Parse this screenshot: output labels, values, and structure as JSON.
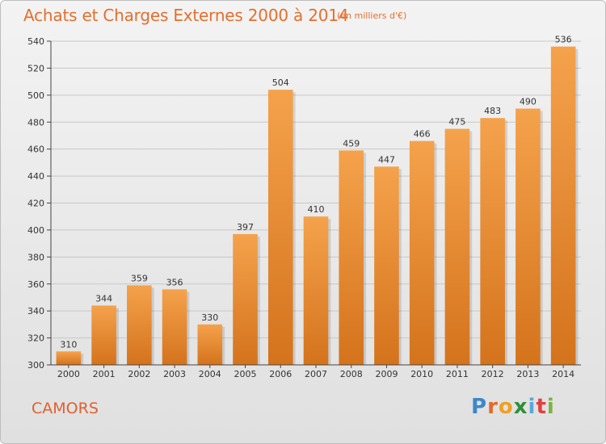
{
  "title": "Achats et Charges Externes 2000 à 2014",
  "subtitle": "(en milliers d'€)",
  "commune": "CAMORS",
  "logo": {
    "letters": [
      "P",
      "r",
      "o",
      "x",
      "i",
      "t",
      "i"
    ],
    "colors": [
      "#3c88c8",
      "#e26a2c",
      "#f0a020",
      "#2f8f3a",
      "#5aa8d8",
      "#e04040",
      "#7cb342"
    ]
  },
  "colors": {
    "bar_top": "#f5a24c",
    "bar_bottom": "#d4731c",
    "title": "#e36f2f"
  },
  "chart_data": {
    "type": "bar",
    "categories": [
      "2000",
      "2001",
      "2002",
      "2003",
      "2004",
      "2005",
      "2006",
      "2007",
      "2008",
      "2009",
      "2010",
      "2011",
      "2012",
      "2013",
      "2014"
    ],
    "values": [
      310,
      344,
      359,
      356,
      330,
      397,
      504,
      410,
      459,
      447,
      466,
      475,
      483,
      490,
      536
    ],
    "ylim": [
      300,
      540
    ],
    "yticks": [
      300,
      320,
      340,
      360,
      380,
      400,
      420,
      440,
      460,
      480,
      500,
      520,
      540
    ],
    "grid": true
  }
}
